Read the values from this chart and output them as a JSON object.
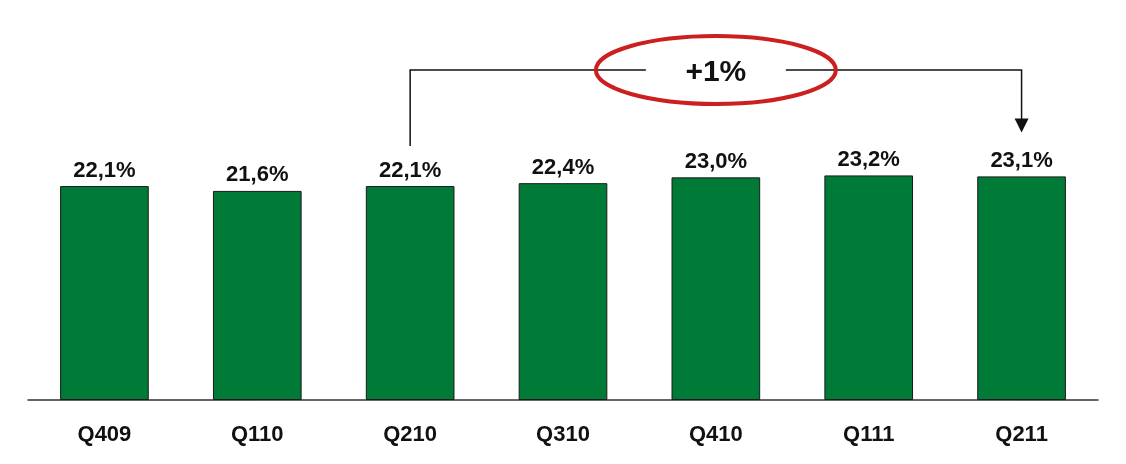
{
  "chart_data": {
    "type": "bar",
    "categories": [
      "Q409",
      "Q110",
      "Q210",
      "Q310",
      "Q410",
      "Q111",
      "Q211"
    ],
    "values": [
      22.1,
      21.6,
      22.1,
      22.4,
      23.0,
      23.2,
      23.1
    ],
    "value_labels": [
      "22,1%",
      "21,6%",
      "22,1%",
      "22,4%",
      "23,0%",
      "23,2%",
      "23,1%"
    ],
    "color": "#007a37",
    "tick_labels": "x",
    "annotations": [
      "+1%"
    ]
  }
}
